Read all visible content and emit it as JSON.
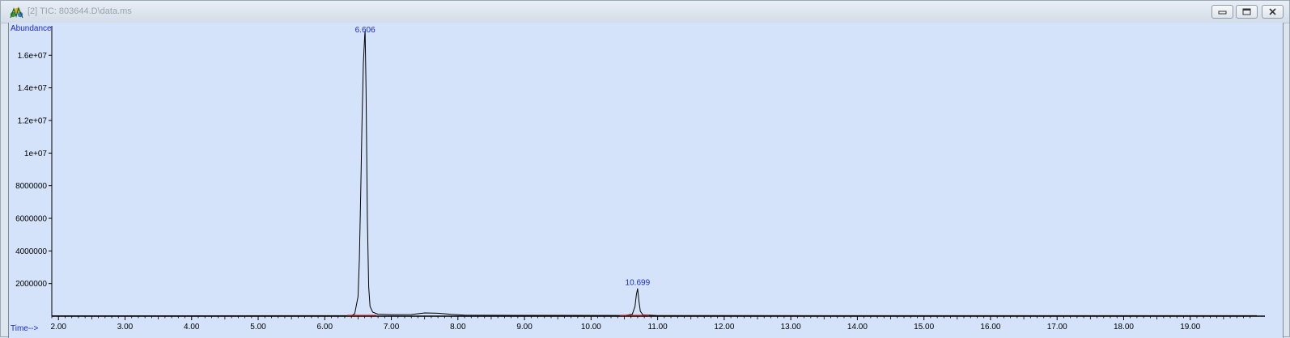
{
  "window": {
    "title": "[2] TIC: 803644.D\\data.ms",
    "icon": "chromatogram-app-icon",
    "buttons": [
      "minimize-icon",
      "restore-icon",
      "close-icon"
    ]
  },
  "chart_data": {
    "type": "line",
    "title": "",
    "ylabel": "Abundance",
    "xlabel": "Time-->",
    "xlim": [
      1.9,
      20.0
    ],
    "ylim": [
      0,
      17800000
    ],
    "x_ticks": [
      "2.00",
      "3.00",
      "4.00",
      "5.00",
      "6.00",
      "7.00",
      "8.00",
      "9.00",
      "10.00",
      "11.00",
      "12.00",
      "13.00",
      "14.00",
      "15.00",
      "16.00",
      "17.00",
      "18.00",
      "19.00"
    ],
    "y_ticks": [
      "2000000",
      "4000000",
      "6000000",
      "8000000",
      "1e+07",
      "1.2e+07",
      "1.4e+07",
      "1.6e+07"
    ],
    "grid": false,
    "line_color": "#000000",
    "background_color": "#d4e2fa",
    "label_color": "#1a2bd0",
    "baseline_marker_color": "#cc2222",
    "peaks": [
      {
        "rt": 6.606,
        "label": "6.606",
        "abundance": 17500000
      },
      {
        "rt": 10.699,
        "label": "10.699",
        "abundance": 1700000
      }
    ],
    "series": [
      {
        "x": [
          1.9,
          6.4,
          6.45,
          6.5,
          6.52,
          6.54,
          6.56,
          6.58,
          6.6,
          6.606,
          6.62,
          6.64,
          6.66,
          6.68,
          6.72,
          6.8,
          7.0,
          7.3,
          7.5,
          7.7,
          7.9,
          8.1,
          9.0,
          9.5,
          10.5,
          10.62,
          10.66,
          10.68,
          10.699,
          10.72,
          10.74,
          10.78,
          11.0,
          15.0,
          20.0
        ],
        "y": [
          20000,
          30000,
          150000,
          1200000,
          3500000,
          7500000,
          12000000,
          15500000,
          17200000,
          17500000,
          14000000,
          6000000,
          1800000,
          600000,
          250000,
          120000,
          90000,
          100000,
          200000,
          180000,
          110000,
          60000,
          50000,
          50000,
          40000,
          120000,
          600000,
          1300000,
          1700000,
          900000,
          300000,
          80000,
          40000,
          30000,
          30000
        ]
      }
    ]
  }
}
